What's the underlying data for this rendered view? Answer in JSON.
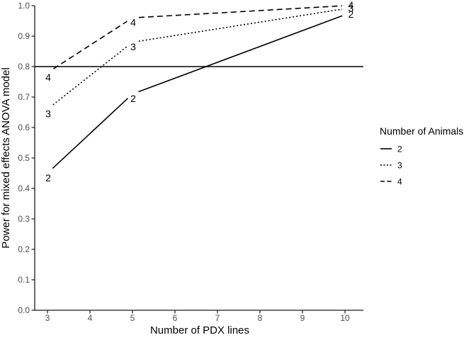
{
  "chart_data": {
    "type": "line",
    "title": "",
    "xlabel": "Number of PDX lines",
    "ylabel": "Power for mixed effects ANOVA model",
    "x_ticks": [
      3,
      4,
      5,
      6,
      7,
      8,
      9,
      10
    ],
    "y_tick_labels": [
      "0.0",
      "0.1",
      "0.2",
      "0.3",
      "0.4",
      "0.5",
      "0.6",
      "0.7",
      "0.8",
      "0.9",
      "1.0"
    ],
    "xlim": [
      3,
      10
    ],
    "ylim": [
      0.0,
      1.0
    ],
    "grid": false,
    "reference_line": {
      "y": 0.8,
      "style": "solid"
    },
    "legend": {
      "title": "Number of Animals",
      "position": "right",
      "entries": [
        {
          "label": "2",
          "line_style": "solid"
        },
        {
          "label": "3",
          "line_style": "dotted"
        },
        {
          "label": "4",
          "line_style": "dashed"
        }
      ]
    },
    "series": [
      {
        "name": "2",
        "line_style": "solid",
        "x": [
          3,
          5,
          10
        ],
        "y": [
          0.45,
          0.71,
          0.97
        ]
      },
      {
        "name": "3",
        "line_style": "dotted",
        "x": [
          3,
          5,
          10
        ],
        "y": [
          0.66,
          0.88,
          0.99
        ]
      },
      {
        "name": "4",
        "line_style": "dashed",
        "x": [
          3,
          5,
          10
        ],
        "y": [
          0.78,
          0.96,
          1.0
        ]
      }
    ],
    "colors": {
      "line": "#000000",
      "axis": "#1a1a1a",
      "tick_label": "#4d4d4d",
      "text": "#000000",
      "background": "#ffffff"
    }
  }
}
